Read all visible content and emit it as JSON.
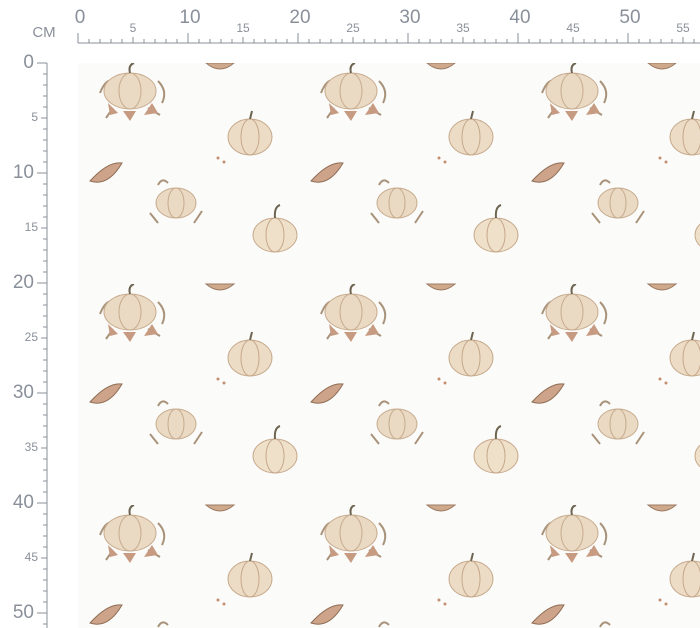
{
  "ruler": {
    "unit": "CM",
    "top_labels": [
      0,
      5,
      10,
      15,
      20,
      25,
      30,
      35,
      40,
      45,
      50,
      55
    ],
    "left_labels": [
      0,
      5,
      10,
      15,
      20,
      25,
      30,
      35,
      40,
      45,
      50
    ]
  }
}
